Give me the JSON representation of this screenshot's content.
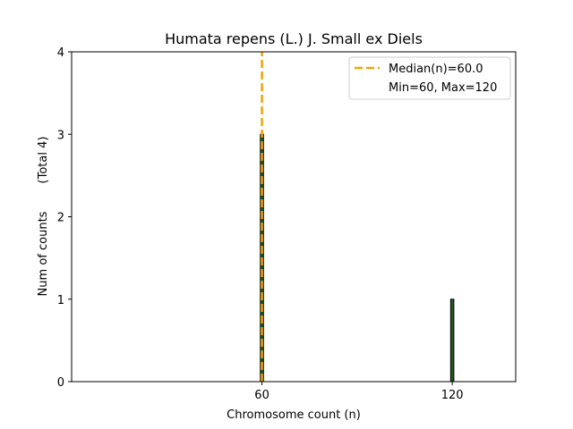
{
  "chart_data": {
    "type": "bar",
    "title": "Humata repens (L.) J. Small ex Diels",
    "xlabel": "Chromosome count (n)",
    "ylabel": "Num of counts",
    "ylabel_total": "(Total 4)",
    "x": [
      60,
      120
    ],
    "values": [
      3,
      1
    ],
    "xlim": [
      0,
      140
    ],
    "ylim": [
      0,
      4
    ],
    "xticks": [
      60,
      120
    ],
    "yticks": [
      0,
      1,
      2,
      3,
      4
    ],
    "bar_width": 1,
    "grid": false,
    "median": 60.0,
    "legend": {
      "position": "top-right",
      "median_label": "Median(n)=60.0",
      "range_label": "Min=60, Max=120"
    },
    "colors": {
      "bar_fill": "#1f5c1f",
      "bar_edge": "#000000",
      "median_line": "#f0a30a"
    }
  }
}
